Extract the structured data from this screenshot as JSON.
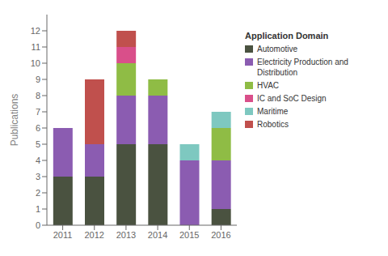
{
  "chart_data": {
    "type": "bar",
    "stacked": true,
    "categories": [
      "2011",
      "2012",
      "2013",
      "2014",
      "2015",
      "2016"
    ],
    "series": [
      {
        "name": "Automotive",
        "color": "#4a5240",
        "values": [
          3,
          3,
          5,
          5,
          0,
          1
        ]
      },
      {
        "name": "Electricity Production and Distribution",
        "color": "#8b5cb1",
        "values": [
          3,
          2,
          3,
          3,
          4,
          3
        ]
      },
      {
        "name": "HVAC",
        "color": "#8fbc45",
        "values": [
          0,
          0,
          2,
          1,
          0,
          2
        ]
      },
      {
        "name": "IC and SoC Design",
        "color": "#d94f8a",
        "values": [
          0,
          0,
          1,
          0,
          0,
          0
        ]
      },
      {
        "name": "Maritime",
        "color": "#7ec8c0",
        "values": [
          0,
          0,
          0,
          0,
          1,
          1
        ]
      },
      {
        "name": "Robotics",
        "color": "#c0504d",
        "values": [
          0,
          4,
          1,
          0,
          0,
          0
        ]
      }
    ],
    "ylabel": "Publications",
    "legend_title": "Application Domain",
    "ylim": [
      0,
      13
    ],
    "yticks": [
      0,
      1,
      2,
      3,
      4,
      5,
      6,
      7,
      8,
      9,
      10,
      11,
      12
    ],
    "grid": false,
    "legend": "right"
  }
}
